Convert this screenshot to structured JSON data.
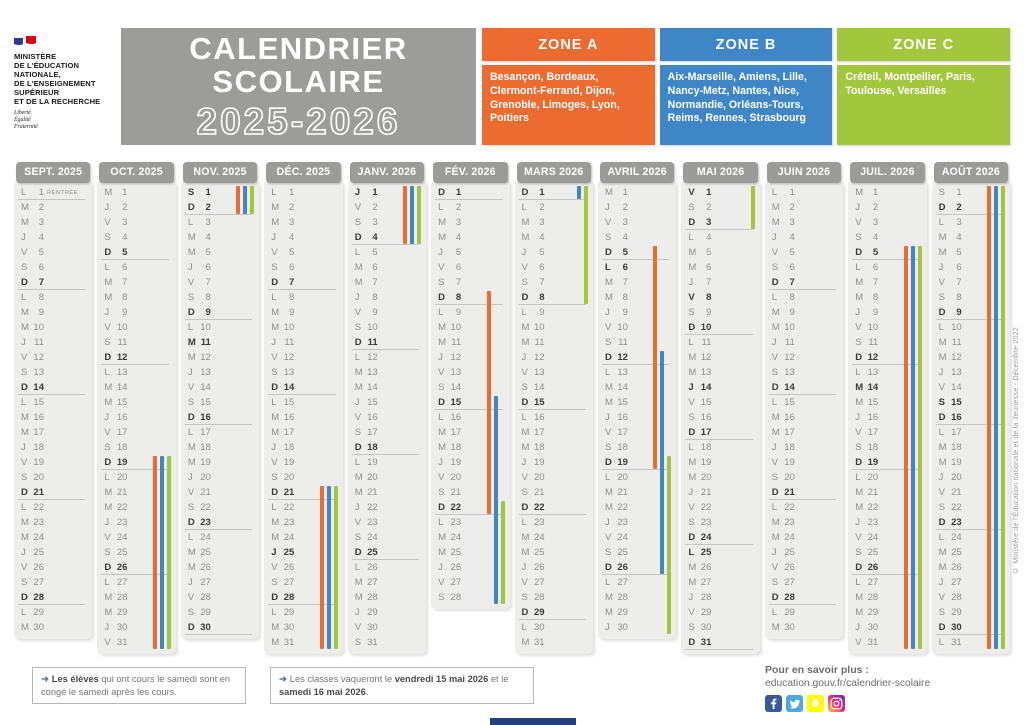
{
  "header": {
    "ministry": {
      "name_lines": [
        "MINISTÈRE",
        "DE L'ÉDUCATION",
        "NATIONALE,",
        "DE L'ENSEIGNEMENT",
        "SUPÉRIEUR",
        "ET DE LA RECHERCHE"
      ],
      "motto_lines": [
        "Liberté",
        "Égalité",
        "Fraternité"
      ],
      "flag_colors": [
        "#2b3a8f",
        "#ffffff",
        "#e1000f"
      ]
    },
    "title_line1": "CALENDRIER",
    "title_line2": "SCOLAIRE",
    "title_years": "2025-2026",
    "title_bg": "#9c9c9b",
    "zones": [
      {
        "id": "A",
        "label": "ZONE A",
        "color": "#EC6B30",
        "cities": "Besançon, Bordeaux, Clermont-Ferrand, Dijon, Grenoble, Limoges, Lyon, Poitiers"
      },
      {
        "id": "B",
        "label": "ZONE B",
        "color": "#3E86C5",
        "cities": "Aix-Marseille, Amiens, Lille, Nancy-Metz, Nantes, Nice, Normandie, Orléans-Tours, Reims, Rennes, Strasbourg"
      },
      {
        "id": "C",
        "label": "ZONE C",
        "color": "#A2C73D",
        "cities": "Créteil, Montpellier, Paris, Toulouse, Versailles"
      }
    ]
  },
  "calendar": {
    "weekday_letters": [
      "L",
      "M",
      "M",
      "J",
      "V",
      "S",
      "D"
    ],
    "zone_colors": {
      "A": "#EC6B30",
      "B": "#3E86C5",
      "C": "#A2C73D"
    },
    "months": [
      {
        "label": "SEPT. 2025",
        "first_weekday": 0,
        "num_days": 30,
        "bold_extra": [],
        "underline_extra": [
          1
        ],
        "tags": {
          "1": "RENTRÉE"
        },
        "bars": []
      },
      {
        "label": "OCT. 2025",
        "first_weekday": 2,
        "num_days": 31,
        "bold_extra": [],
        "underline_extra": [],
        "tags": {},
        "bars": [
          {
            "zone": "A",
            "from": 19,
            "to": 31
          },
          {
            "zone": "B",
            "from": 19,
            "to": 31
          },
          {
            "zone": "C",
            "from": 19,
            "to": 31
          }
        ]
      },
      {
        "label": "NOV. 2025",
        "first_weekday": 5,
        "num_days": 30,
        "bold_extra": [
          1,
          11
        ],
        "underline_extra": [],
        "tags": {},
        "bars": [
          {
            "zone": "A",
            "from": 1,
            "to": 2
          },
          {
            "zone": "B",
            "from": 1,
            "to": 2
          },
          {
            "zone": "C",
            "from": 1,
            "to": 2
          }
        ]
      },
      {
        "label": "DÉC. 2025",
        "first_weekday": 0,
        "num_days": 31,
        "bold_extra": [
          25
        ],
        "underline_extra": [],
        "tags": {},
        "bars": [
          {
            "zone": "A",
            "from": 21,
            "to": 31
          },
          {
            "zone": "B",
            "from": 21,
            "to": 31
          },
          {
            "zone": "C",
            "from": 21,
            "to": 31
          }
        ]
      },
      {
        "label": "JANV. 2026",
        "first_weekday": 3,
        "num_days": 31,
        "bold_extra": [
          1
        ],
        "underline_extra": [],
        "tags": {},
        "bars": [
          {
            "zone": "A",
            "from": 1,
            "to": 4
          },
          {
            "zone": "B",
            "from": 1,
            "to": 4
          },
          {
            "zone": "C",
            "from": 1,
            "to": 4
          }
        ]
      },
      {
        "label": "FÉV. 2026",
        "first_weekday": 6,
        "num_days": 28,
        "bold_extra": [],
        "underline_extra": [],
        "tags": {},
        "bars": [
          {
            "zone": "A",
            "from": 8,
            "to": 22
          },
          {
            "zone": "B",
            "from": 15,
            "to": 28
          },
          {
            "zone": "C",
            "from": 22,
            "to": 28
          }
        ]
      },
      {
        "label": "MARS 2026",
        "first_weekday": 6,
        "num_days": 31,
        "bold_extra": [],
        "underline_extra": [],
        "tags": {},
        "bars": [
          {
            "zone": "B",
            "from": 1,
            "to": 1
          },
          {
            "zone": "C",
            "from": 1,
            "to": 8
          }
        ]
      },
      {
        "label": "AVRIL 2026",
        "first_weekday": 2,
        "num_days": 30,
        "bold_extra": [
          6
        ],
        "underline_extra": [],
        "tags": {},
        "bars": [
          {
            "zone": "A",
            "from": 5,
            "to": 19
          },
          {
            "zone": "B",
            "from": 12,
            "to": 26
          },
          {
            "zone": "C",
            "from": 19,
            "to": 30
          }
        ]
      },
      {
        "label": "MAI 2026",
        "first_weekday": 4,
        "num_days": 31,
        "bold_extra": [
          1,
          8,
          14,
          25
        ],
        "underline_extra": [],
        "tags": {},
        "bars": [
          {
            "zone": "C",
            "from": 1,
            "to": 3
          }
        ]
      },
      {
        "label": "JUIN 2026",
        "first_weekday": 0,
        "num_days": 30,
        "bold_extra": [],
        "underline_extra": [],
        "tags": {},
        "bars": []
      },
      {
        "label": "JUIL. 2026",
        "first_weekday": 2,
        "num_days": 31,
        "bold_extra": [
          14
        ],
        "underline_extra": [],
        "tags": {},
        "bars": [
          {
            "zone": "A",
            "from": 5,
            "to": 31
          },
          {
            "zone": "B",
            "from": 5,
            "to": 31
          },
          {
            "zone": "C",
            "from": 5,
            "to": 31
          }
        ]
      },
      {
        "label": "AOÛT 2026",
        "first_weekday": 5,
        "num_days": 31,
        "bold_extra": [
          15
        ],
        "underline_extra": [],
        "tags": {},
        "bars": [
          {
            "zone": "A",
            "from": 1,
            "to": 31
          },
          {
            "zone": "B",
            "from": 1,
            "to": 31
          },
          {
            "zone": "C",
            "from": 1,
            "to": 31
          }
        ]
      }
    ]
  },
  "notes": [
    {
      "arrow": "➜",
      "segments": [
        {
          "text": "Les élèves",
          "bold": true
        },
        {
          "text": " qui ont cours le samedi sont en congé le samedi après les cours.",
          "bold": false
        }
      ]
    },
    {
      "arrow": "➜",
      "segments": [
        {
          "text": "Les classes vaqueront le ",
          "bold": false
        },
        {
          "text": "vendredi 15 mai 2026",
          "bold": true
        },
        {
          "text": " et le ",
          "bold": false
        },
        {
          "text": "samedi 16 mai 2026",
          "bold": true
        },
        {
          "text": ".",
          "bold": false
        }
      ]
    }
  ],
  "footer": {
    "more_label": "Pour en savoir plus :",
    "url": "education.gouv.fr/calendrier-scolaire",
    "social_icons": [
      "facebook-icon",
      "twitter-icon",
      "snapchat-icon",
      "instagram-icon"
    ],
    "social_colors": {
      "facebook": "#3A5A98",
      "twitter": "#4FA8DD",
      "snapchat": "#FFFC00",
      "instagram_gradient": [
        "#f9ce34",
        "#ee2a7b",
        "#6228d7"
      ]
    }
  },
  "copyright": "© Ministère de l'Éducation nationale et de la Jeunesse - Décembre 2022"
}
